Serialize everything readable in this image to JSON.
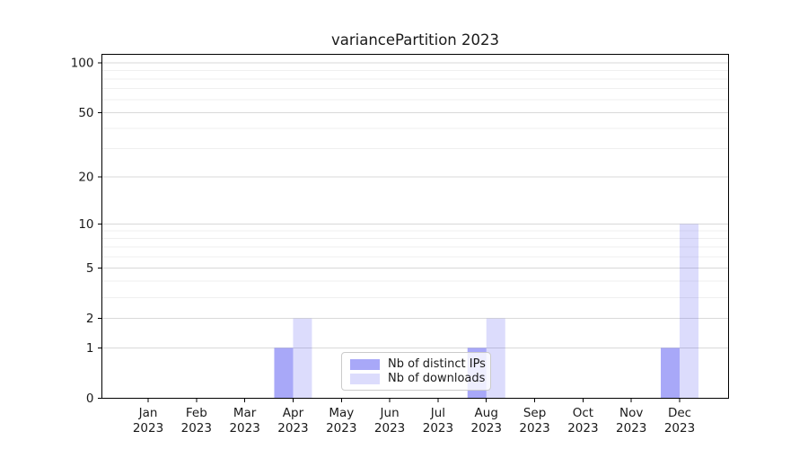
{
  "chart_data": {
    "type": "bar",
    "title": "variancePartition 2023",
    "categories": [
      {
        "month": "Jan",
        "year": "2023"
      },
      {
        "month": "Feb",
        "year": "2023"
      },
      {
        "month": "Mar",
        "year": "2023"
      },
      {
        "month": "Apr",
        "year": "2023"
      },
      {
        "month": "May",
        "year": "2023"
      },
      {
        "month": "Jun",
        "year": "2023"
      },
      {
        "month": "Jul",
        "year": "2023"
      },
      {
        "month": "Aug",
        "year": "2023"
      },
      {
        "month": "Sep",
        "year": "2023"
      },
      {
        "month": "Oct",
        "year": "2023"
      },
      {
        "month": "Nov",
        "year": "2023"
      },
      {
        "month": "Dec",
        "year": "2023"
      }
    ],
    "series": [
      {
        "name": "Nb of distinct IPs",
        "key": "distinct-ips",
        "fill": "rgba(62,62,240,0.45)",
        "color_hex": "#a6a6f4",
        "values": [
          0,
          0,
          0,
          1,
          0,
          0,
          0,
          1,
          0,
          0,
          0,
          1
        ]
      },
      {
        "name": "Nb of downloads",
        "key": "downloads",
        "fill": "rgba(62,62,240,0.18)",
        "color_hex": "#dcdcf8",
        "values": [
          0,
          0,
          0,
          2,
          0,
          0,
          0,
          2,
          0,
          0,
          0,
          10
        ]
      }
    ],
    "y_axis": {
      "scale": "log1p",
      "ticks": [
        0,
        1,
        2,
        5,
        10,
        20,
        50,
        100
      ],
      "minor_ticks": [
        3,
        4,
        6,
        7,
        8,
        9,
        30,
        40,
        60,
        70,
        80,
        90
      ],
      "ylim": [
        0,
        115
      ]
    },
    "legend": {
      "position": "lower center"
    },
    "grid": true,
    "colors": {
      "grid_major": "#d9d9d9",
      "grid_minor": "#efefef",
      "spine": "#000000",
      "text": "#1a1a1a"
    }
  }
}
